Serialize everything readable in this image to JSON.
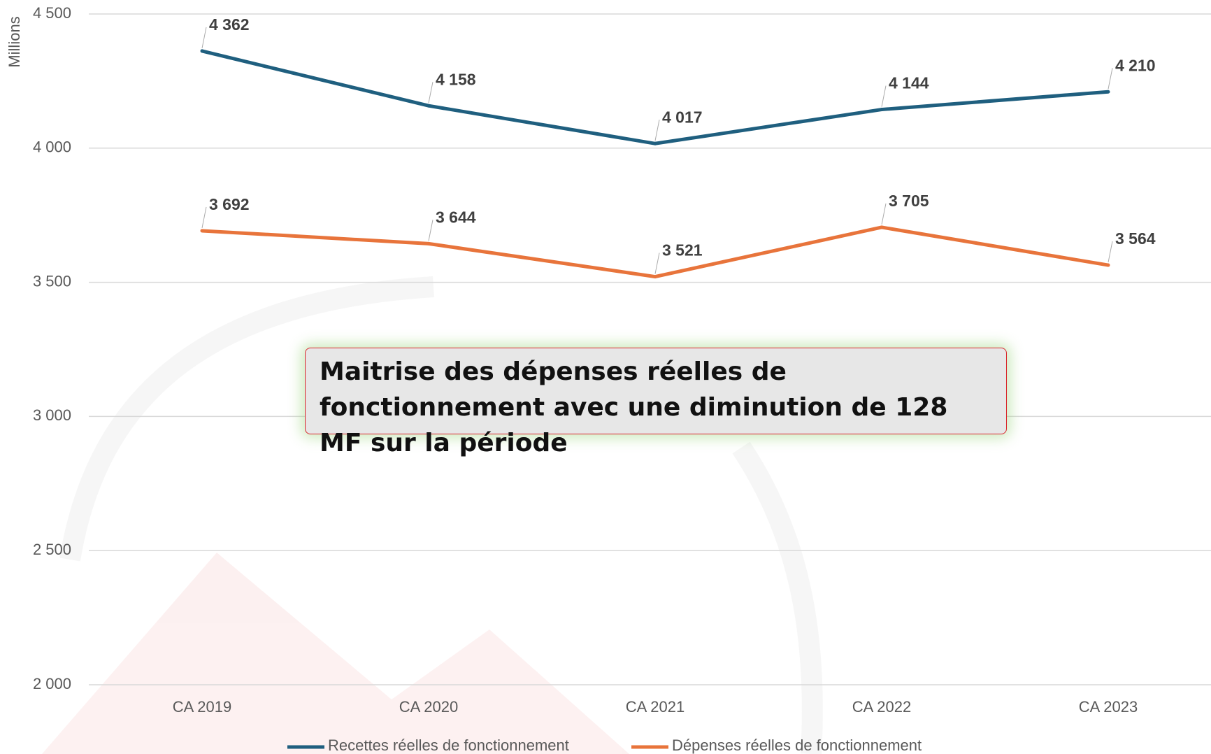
{
  "chart_data": {
    "type": "line",
    "y_axis_label": "Millions",
    "categories": [
      "CA 2019",
      "CA 2020",
      "CA 2021",
      "CA 2022",
      "CA 2023"
    ],
    "series": [
      {
        "name": "Recettes réelles de fonctionnement",
        "color": "#1f5f7f",
        "values": [
          4362,
          4158,
          4017,
          4144,
          4210
        ],
        "value_labels": [
          "4 362",
          "4 158",
          "4 017",
          "4 144",
          "4 210"
        ]
      },
      {
        "name": "Dépenses réelles de fonctionnement",
        "color": "#e8743b",
        "values": [
          3692,
          3644,
          3521,
          3705,
          3564
        ],
        "value_labels": [
          "3 692",
          "3 644",
          "3 521",
          "3 705",
          "3 564"
        ]
      }
    ],
    "ylim": [
      2000,
      4500
    ],
    "yticks": [
      {
        "value": 2000,
        "label": "2 000"
      },
      {
        "value": 2500,
        "label": "2 500"
      },
      {
        "value": 3000,
        "label": "3 000"
      },
      {
        "value": 3500,
        "label": "3 500"
      },
      {
        "value": 4000,
        "label": "4 000"
      },
      {
        "value": 4500,
        "label": "4 500"
      }
    ],
    "grid": true,
    "legend": "bottom",
    "annotation": "Maitrise des dépenses réelles de fonctionnement avec une diminution de 128 MF sur la période"
  }
}
